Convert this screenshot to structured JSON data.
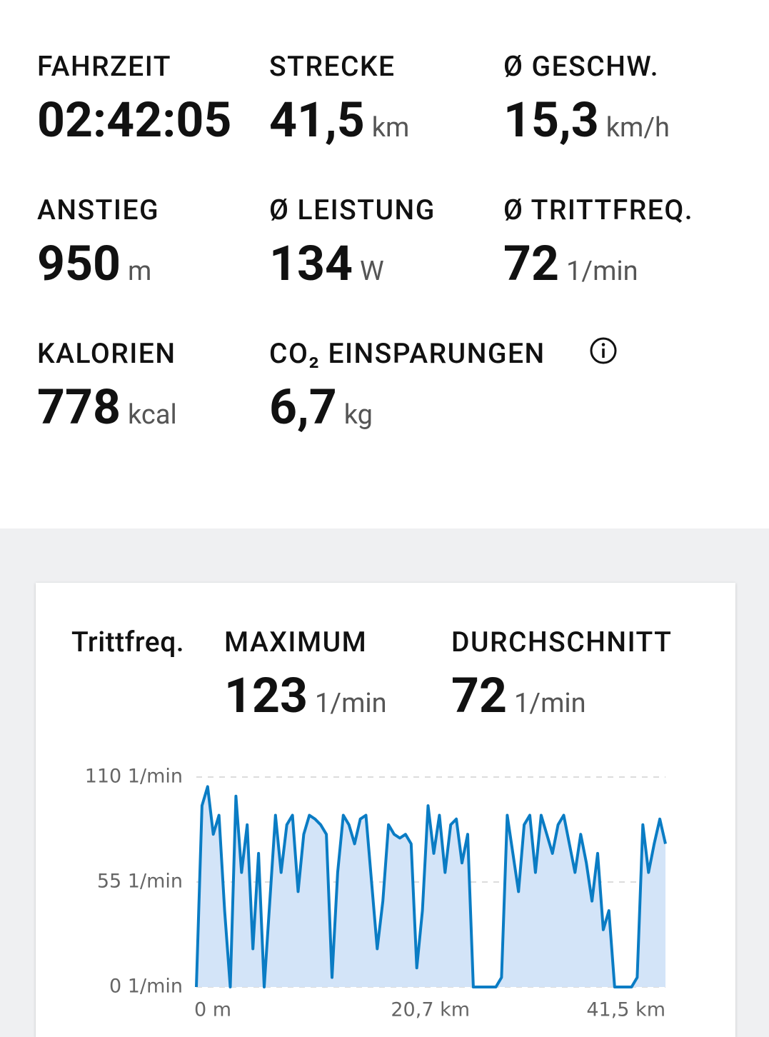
{
  "stats": [
    {
      "label": "FAHRZEIT",
      "value": "02:42:05"
    },
    {
      "label": "STRECKE",
      "value": "41,5",
      "unit": "km"
    },
    {
      "label": "Ø GESCHW.",
      "value": "15,3",
      "unit": "km/h"
    },
    {
      "label": "ANSTIEG",
      "value": "950",
      "unit": "m"
    },
    {
      "label": "Ø LEISTUNG",
      "value": "134",
      "unit": "W"
    },
    {
      "label": "Ø TRITTFREQ.",
      "value": "72",
      "unit": "1/min"
    },
    {
      "label": "KALORIEN",
      "value": "778",
      "unit": "kcal"
    },
    {
      "label": "CO₂ EINSPARUNGEN",
      "value": "6,7",
      "unit": "kg"
    }
  ],
  "card": {
    "title": "Trittfreq.",
    "summary": [
      {
        "label": "MAXIMUM",
        "value": "123",
        "unit": "1/min"
      },
      {
        "label": "DURCHSCHNITT",
        "value": "72",
        "unit": "1/min"
      }
    ]
  },
  "chart_data": {
    "type": "area",
    "color": "#0a7cc4",
    "fill_color": "#d3e4f8",
    "x": [
      0,
      0.5,
      1,
      1.5,
      2,
      2.5,
      3,
      3.5,
      4,
      4.5,
      5,
      5.5,
      6,
      6.5,
      7,
      7.5,
      8,
      8.5,
      9,
      9.5,
      10,
      10.5,
      11,
      11.5,
      12,
      12.5,
      13,
      13.5,
      14,
      14.5,
      15,
      15.5,
      16,
      16.5,
      17,
      17.5,
      18,
      18.5,
      19,
      19.5,
      20,
      20.5,
      21,
      21.5,
      22,
      22.5,
      23,
      23.5,
      24,
      24.5,
      25,
      25.5,
      26,
      26.5,
      27,
      27.5,
      28,
      28.5,
      29,
      29.5,
      30,
      30.5,
      31,
      31.5,
      32,
      32.5,
      33,
      33.5,
      34,
      34.5,
      35,
      35.5,
      36,
      36.5,
      37,
      37.5,
      38,
      38.5,
      39,
      39.5,
      40,
      40.5,
      41,
      41.5
    ],
    "values": [
      0,
      95,
      105,
      80,
      90,
      40,
      0,
      100,
      60,
      85,
      20,
      70,
      0,
      45,
      90,
      60,
      85,
      90,
      50,
      80,
      90,
      88,
      85,
      80,
      5,
      60,
      90,
      85,
      75,
      88,
      90,
      55,
      20,
      45,
      85,
      80,
      78,
      80,
      75,
      10,
      40,
      95,
      70,
      90,
      60,
      85,
      88,
      65,
      80,
      0,
      0,
      0,
      0,
      0,
      5,
      90,
      70,
      50,
      85,
      90,
      60,
      90,
      80,
      70,
      85,
      90,
      75,
      60,
      80,
      65,
      45,
      70,
      30,
      40,
      0,
      0,
      0,
      0,
      5,
      85,
      60,
      75,
      88,
      75
    ],
    "xlim": [
      0,
      41.5
    ],
    "ylim": [
      0,
      110
    ],
    "xticks": [
      {
        "value": 0,
        "label": "0 m"
      },
      {
        "value": 20.7,
        "label": "20,7 km"
      },
      {
        "value": 41.5,
        "label": "41,5 km"
      }
    ],
    "yticks": [
      {
        "value": 0,
        "label": "0 1/min"
      },
      {
        "value": 55,
        "label": "55 1/min"
      },
      {
        "value": 110,
        "label": "110 1/min"
      }
    ],
    "grid": true
  }
}
